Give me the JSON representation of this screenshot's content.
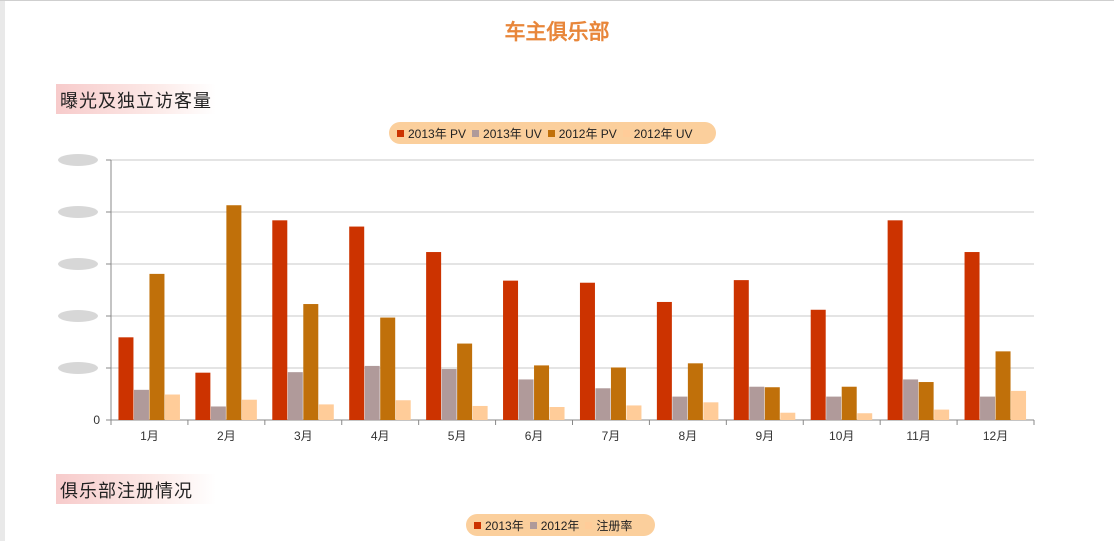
{
  "page": {
    "title": "车主俱乐部"
  },
  "sections": [
    {
      "title": "曝光及独立访客量"
    },
    {
      "title": "俱乐部注册情况"
    }
  ],
  "colors": {
    "pv2013": "#cc3300",
    "uv2013": "#b09a9a",
    "pv2012": "#c0700a",
    "uv2012": "#ffcc99",
    "title": "#e8863a",
    "legend_bg": "#fbcf9c"
  },
  "chart_data": [
    {
      "type": "bar",
      "title": "曝光及独立访客量",
      "categories": [
        "1月",
        "2月",
        "3月",
        "4月",
        "5月",
        "6月",
        "7月",
        "8月",
        "9月",
        "10月",
        "11月",
        "12月"
      ],
      "series": [
        {
          "name": "2013年 PV",
          "color": "#cc3300",
          "values": [
            1.59,
            0.91,
            3.84,
            3.72,
            3.23,
            2.68,
            2.64,
            2.27,
            2.69,
            2.12,
            3.84,
            3.23
          ]
        },
        {
          "name": "2013年 UV",
          "color": "#b09a9a",
          "values": [
            0.58,
            0.26,
            0.92,
            1.04,
            0.98,
            0.78,
            0.61,
            0.45,
            0.64,
            0.45,
            0.78,
            0.45
          ]
        },
        {
          "name": "2012年 PV",
          "color": "#c0700a",
          "values": [
            2.81,
            4.13,
            2.23,
            1.97,
            1.47,
            1.05,
            1.01,
            1.09,
            0.63,
            0.64,
            0.73,
            1.32
          ]
        },
        {
          "name": "2012年 UV",
          "color": "#ffcc99",
          "values": [
            0.49,
            0.39,
            0.3,
            0.38,
            0.27,
            0.25,
            0.28,
            0.34,
            0.14,
            0.13,
            0.2,
            0.56
          ]
        }
      ],
      "y_tick_labels": [
        "0",
        "",
        "",
        " ",
        "",
        ""
      ],
      "ylim": [
        0,
        5
      ],
      "grid": true,
      "legend": "top-center"
    },
    {
      "type": "bar",
      "title": "俱乐部注册情况",
      "series": [
        {
          "name": "2013年",
          "color": "#cc3300"
        },
        {
          "name": "2012年",
          "color": "#b09a9a"
        },
        {
          "name": "注册率",
          "color": "#ffcc99"
        }
      ],
      "legend": "top-center"
    }
  ]
}
